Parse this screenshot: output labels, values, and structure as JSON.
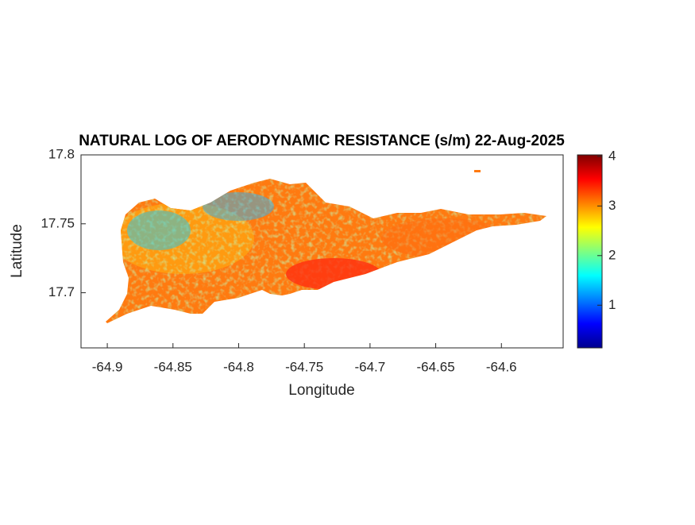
{
  "chart_data": {
    "type": "map",
    "title": "NATURAL LOG OF AERODYNAMIC RESISTANCE (s/m) 22-Aug-2025",
    "x_label": "Longitude",
    "y_label": "Latitude",
    "xlim": [
      -64.92,
      -64.553
    ],
    "xticks": [
      -64.9,
      -64.85,
      -64.8,
      -64.75,
      -64.7,
      -64.65,
      -64.6
    ],
    "ylim": [
      17.66,
      17.8
    ],
    "yticks": [
      17.7,
      17.75,
      17.8
    ],
    "colorbar": {
      "colormap": "jet",
      "clim": [
        0.14,
        4.03
      ],
      "ticks": [
        1,
        2,
        3,
        4
      ]
    }
  }
}
